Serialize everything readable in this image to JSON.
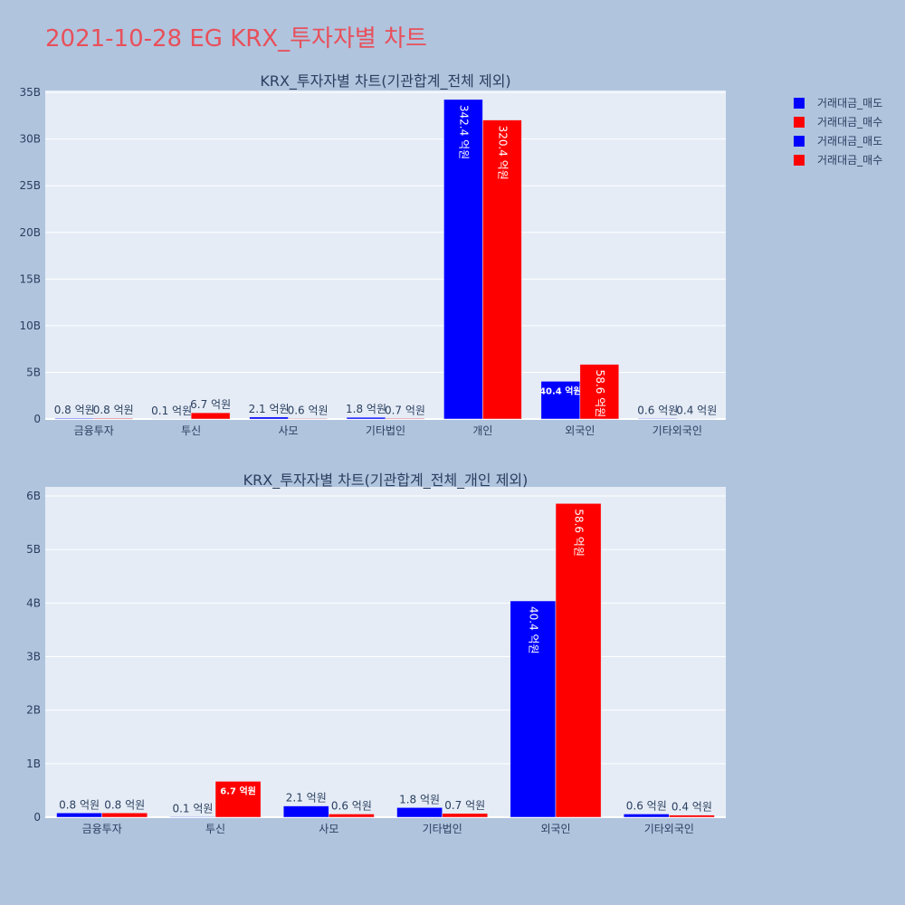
{
  "title": "2021-10-28 EG KRX_투자자별 차트",
  "colors": {
    "sell": "#0000ff",
    "buy": "#ff0000"
  },
  "legend": {
    "placement": "top-right",
    "entries": [
      {
        "name": "거래대금_매도",
        "color": "#0000ff"
      },
      {
        "name": "거래대금_매수",
        "color": "#ff0000"
      },
      {
        "name": "거래대금_매도",
        "color": "#0000ff"
      },
      {
        "name": "거래대금_매수",
        "color": "#ff0000"
      }
    ]
  },
  "chart_data": [
    {
      "type": "bar",
      "title": "KRX_투자자별 차트(기관합계_전체 제외)",
      "categories": [
        "금융투자",
        "투신",
        "사모",
        "기타법인",
        "개인",
        "외국인",
        "기타외국인"
      ],
      "yticks": [
        {
          "v": 0,
          "label": "0"
        },
        {
          "v": 5,
          "label": "5B"
        },
        {
          "v": 10,
          "label": "10B"
        },
        {
          "v": 15,
          "label": "15B"
        },
        {
          "v": 20,
          "label": "20B"
        },
        {
          "v": 25,
          "label": "25B"
        },
        {
          "v": 30,
          "label": "30B"
        },
        {
          "v": 35,
          "label": "35B"
        }
      ],
      "ylim": [
        0,
        35.2
      ],
      "grid": true,
      "series": [
        {
          "name": "거래대금_매도",
          "values": [
            0.08,
            0.01,
            0.21,
            0.18,
            34.24,
            4.04,
            0.06
          ],
          "labels": [
            "0.8 억원",
            "0.1 억원",
            "2.1 억원",
            "1.8 억원",
            "342.4 억원",
            "40.4 억원",
            "0.6 억원"
          ]
        },
        {
          "name": "거래대금_매수",
          "values": [
            0.08,
            0.67,
            0.06,
            0.07,
            32.04,
            5.86,
            0.04
          ],
          "labels": [
            "0.8 억원",
            "6.7 억원",
            "0.6 억원",
            "0.7 억원",
            "320.4 억원",
            "58.6 억원",
            "0.4 억원"
          ]
        }
      ]
    },
    {
      "type": "bar",
      "title": "KRX_투자자별 차트(기관합계_전체_개인 제외)",
      "categories": [
        "금융투자",
        "투신",
        "사모",
        "기타법인",
        "외국인",
        "기타외국인"
      ],
      "yticks": [
        {
          "v": 0,
          "label": "0"
        },
        {
          "v": 1,
          "label": "1B"
        },
        {
          "v": 2,
          "label": "2B"
        },
        {
          "v": 3,
          "label": "3B"
        },
        {
          "v": 4,
          "label": "4B"
        },
        {
          "v": 5,
          "label": "5B"
        },
        {
          "v": 6,
          "label": "6B"
        }
      ],
      "ylim": [
        0,
        6.17
      ],
      "grid": true,
      "series": [
        {
          "name": "거래대금_매도",
          "values": [
            0.08,
            0.01,
            0.21,
            0.18,
            4.04,
            0.06
          ],
          "labels": [
            "0.8 억원",
            "0.1 억원",
            "2.1 억원",
            "1.8 억원",
            "40.4 억원",
            "0.6 억원"
          ]
        },
        {
          "name": "거래대금_매수",
          "values": [
            0.08,
            0.67,
            0.06,
            0.07,
            5.86,
            0.04
          ],
          "labels": [
            "0.8 억원",
            "6.7 억원",
            "0.6 억원",
            "0.7 억원",
            "58.6 억원",
            "0.4 억원"
          ]
        }
      ]
    }
  ]
}
